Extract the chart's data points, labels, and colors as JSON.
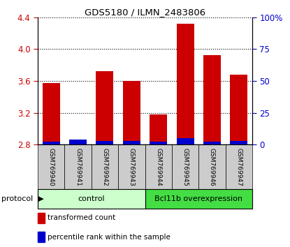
{
  "title": "GDS5180 / ILMN_2483806",
  "samples": [
    "GSM769940",
    "GSM769941",
    "GSM769942",
    "GSM769943",
    "GSM769944",
    "GSM769945",
    "GSM769946",
    "GSM769947"
  ],
  "red_values": [
    3.57,
    2.83,
    3.72,
    3.6,
    3.18,
    4.32,
    3.92,
    3.68
  ],
  "blue_percentiles": [
    2,
    4,
    3,
    3,
    2,
    5,
    2,
    3
  ],
  "baseline": 2.8,
  "ylim_left": [
    2.8,
    4.4
  ],
  "ylim_right": [
    0,
    100
  ],
  "yticks_left": [
    2.8,
    3.2,
    3.6,
    4.0,
    4.4
  ],
  "yticks_right": [
    0,
    25,
    50,
    75,
    100
  ],
  "ytick_labels_right": [
    "0",
    "25",
    "50",
    "75",
    "100%"
  ],
  "red_color": "#cc0000",
  "blue_color": "#0000cc",
  "bar_width": 0.65,
  "control_color": "#ccffcc",
  "overexp_color": "#44dd44",
  "protocol_label": "protocol",
  "legend_red": "transformed count",
  "legend_blue": "percentile rank within the sample",
  "tick_label_color_left": "#cc0000",
  "tick_label_color_right": "#0000cc",
  "bg_color": "#ffffff",
  "sample_bg": "#cccccc",
  "n_control": 4,
  "n_overexp": 4
}
